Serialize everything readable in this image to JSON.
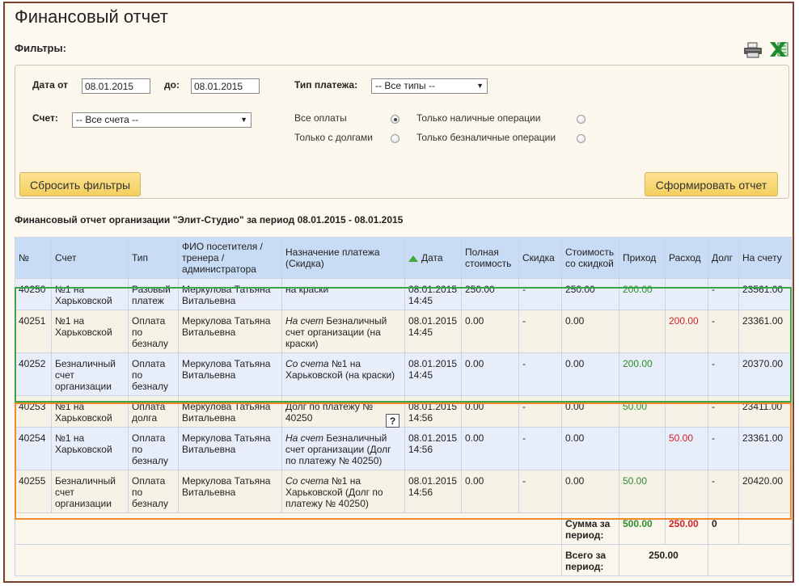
{
  "page": {
    "title": "Финансовый отчет"
  },
  "filters": {
    "heading": "Фильтры:",
    "date_from_label": "Дата от",
    "date_from_value": "08.01.2015",
    "date_to_label": "до:",
    "date_to_value": "08.01.2015",
    "payment_type_label": "Тип платежа:",
    "payment_type_value": "-- Все типы --",
    "account_label": "Счет:",
    "account_value": "-- Все счета --",
    "radio_all_payments": "Все оплаты",
    "radio_with_debts": "Только с долгами",
    "radio_cash_only": "Только наличные операции",
    "radio_noncash_only": "Только безналичные операции",
    "reset_button": "Сбросить фильтры",
    "generate_button": "Сформировать отчет"
  },
  "report": {
    "heading": "Финансовый отчет организации \"Элит-Студио\" за период 08.01.2015 - 08.01.2015",
    "columns": [
      "№",
      "Счет",
      "Тип",
      "ФИО посетителя / тренера / администратора",
      "Назначение платежа (Скидка)",
      "Дата",
      "Полная стоимость",
      "Скидка",
      "Стоимость со скидкой",
      "Приход",
      "Расход",
      "Долг",
      "На счету"
    ],
    "rows": [
      {
        "num": "40250",
        "account": "№1 на Харьковской",
        "type": "Разовый платеж",
        "person": "Меркулова Татьяна Витальевна",
        "purpose_prefix": "",
        "purpose": "на краски",
        "date": "08.01.2015 14:45",
        "full_cost": "250.00",
        "discount": "-",
        "discounted_cost": "250.00",
        "income": "200.00",
        "expense": "",
        "debt": "-",
        "balance": "23561.00"
      },
      {
        "num": "40251",
        "account": "№1 на Харьковской",
        "type": "Оплата по безналу",
        "person": "Меркулова Татьяна Витальевна",
        "purpose_prefix": "На счет",
        "purpose": "Безналичный счет организации (на краски)",
        "date": "08.01.2015 14:45",
        "full_cost": "0.00",
        "discount": "-",
        "discounted_cost": "0.00",
        "income": "",
        "expense": "200.00",
        "debt": "-",
        "balance": "23361.00"
      },
      {
        "num": "40252",
        "account": "Безналичный счет организации",
        "type": "Оплата по безналу",
        "person": "Меркулова Татьяна Витальевна",
        "purpose_prefix": "Со счета",
        "purpose": "№1 на Харьковской (на краски)",
        "date": "08.01.2015 14:45",
        "full_cost": "0.00",
        "discount": "-",
        "discounted_cost": "0.00",
        "income": "200.00",
        "expense": "",
        "debt": "-",
        "balance": "20370.00"
      },
      {
        "num": "40253",
        "account": "№1 на Харьковской",
        "type": "Оплата долга",
        "person": "Меркулова Татьяна Витальевна",
        "purpose_prefix": "",
        "purpose": "Долг по платежу № 40250",
        "help": "?",
        "date": "08.01.2015 14:56",
        "full_cost": "0.00",
        "discount": "-",
        "discounted_cost": "0.00",
        "income": "50.00",
        "expense": "",
        "debt": "-",
        "balance": "23411.00"
      },
      {
        "num": "40254",
        "account": "№1 на Харьковской",
        "type": "Оплата по безналу",
        "person": "Меркулова Татьяна Витальевна",
        "purpose_prefix": "На счет",
        "purpose": "Безналичный счет организации (Долг по платежу № 40250)",
        "date": "08.01.2015 14:56",
        "full_cost": "0.00",
        "discount": "-",
        "discounted_cost": "0.00",
        "income": "",
        "expense": "50.00",
        "debt": "-",
        "balance": "23361.00"
      },
      {
        "num": "40255",
        "account": "Безналичный счет организации",
        "type": "Оплата по безналу",
        "person": "Меркулова Татьяна Витальевна",
        "purpose_prefix": "Со счета",
        "purpose": "№1 на Харьковской (Долг по платежу № 40250)",
        "date": "08.01.2015 14:56",
        "full_cost": "0.00",
        "discount": "-",
        "discounted_cost": "0.00",
        "income": "50.00",
        "expense": "",
        "debt": "-",
        "balance": "20420.00"
      }
    ],
    "sum_label": "Сумма за период:",
    "sum_income": "500.00",
    "sum_expense": "250.00",
    "sum_debt": "0",
    "total_label": "Всего за период:",
    "total_value": "250.00"
  },
  "icons": {
    "print": "printer-icon",
    "excel": "excel-icon"
  },
  "colors": {
    "income": "#2e8b2e",
    "expense": "#d0222b",
    "header_bg": "#c9dcf5",
    "green_frame": "#3aa64a",
    "orange_frame": "#ef8a2d"
  }
}
